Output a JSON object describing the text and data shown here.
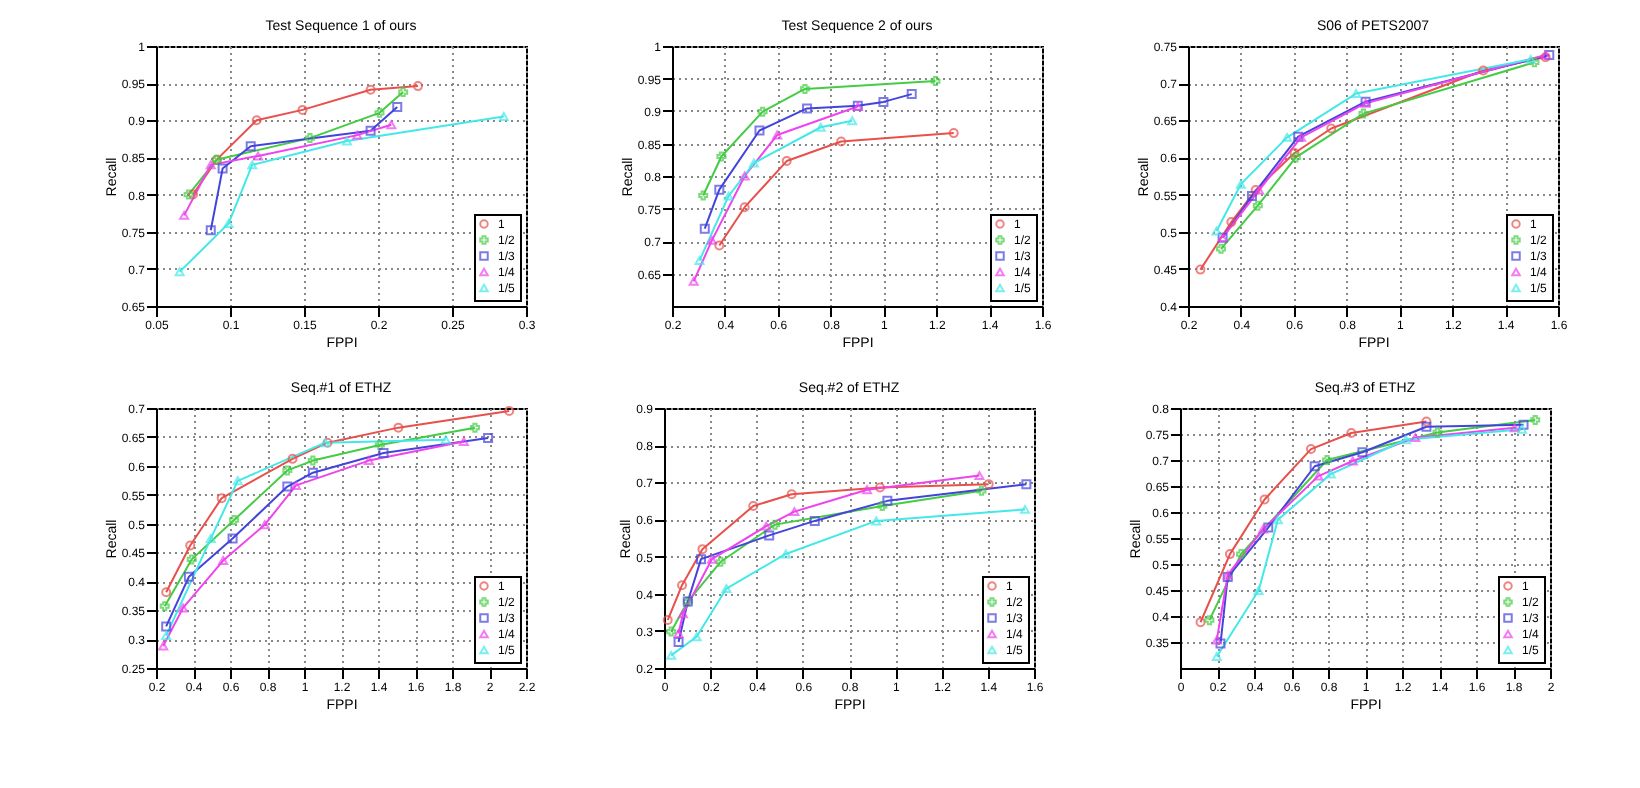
{
  "chart_data": [
    {
      "type": "line",
      "title": "Test Sequence 1 of ours",
      "xlabel": "FPPI",
      "ylabel": "Recall",
      "xlim": [
        0.05,
        0.3
      ],
      "xticks": [
        0.05,
        0.1,
        0.15,
        0.2,
        0.25,
        0.3
      ],
      "ylim": [
        0.65,
        1
      ],
      "yticks": [
        0.65,
        0.7,
        0.75,
        0.8,
        0.85,
        0.9,
        0.95,
        1
      ],
      "grid": true,
      "legend": "bottom right",
      "line_style": "solid",
      "series": [
        {
          "name": "1",
          "color": "#e8504c",
          "marker": "circle",
          "x": [
            0.075,
            0.091,
            0.118,
            0.149,
            0.195,
            0.227
          ],
          "values": [
            0.8,
            0.847,
            0.9,
            0.914,
            0.941,
            0.946
          ]
        },
        {
          "name": "1/2",
          "color": "#44cc44",
          "marker": "cross",
          "x": [
            0.072,
            0.091,
            0.154,
            0.201,
            0.217
          ],
          "values": [
            0.8,
            0.847,
            0.876,
            0.91,
            0.938
          ]
        },
        {
          "name": "1/3",
          "color": "#4444dd",
          "marker": "square",
          "x": [
            0.087,
            0.095,
            0.114,
            0.195,
            0.213
          ],
          "values": [
            0.752,
            0.835,
            0.865,
            0.886,
            0.918
          ]
        },
        {
          "name": "1/4",
          "color": "#ee44ee",
          "marker": "triangle",
          "x": [
            0.069,
            0.087,
            0.119,
            0.186,
            0.209
          ],
          "values": [
            0.772,
            0.84,
            0.852,
            0.88,
            0.894
          ]
        },
        {
          "name": "1/5",
          "color": "#44e8e8",
          "marker": "triangle",
          "x": [
            0.066,
            0.099,
            0.115,
            0.179,
            0.285
          ],
          "values": [
            0.696,
            0.761,
            0.84,
            0.872,
            0.905
          ]
        }
      ]
    },
    {
      "type": "line",
      "title": "Test Sequence 2 of ours",
      "xlabel": "FPPI",
      "ylabel": "Recall",
      "xlim": [
        0.2,
        1.6
      ],
      "xticks": [
        0.2,
        0.4,
        0.6,
        0.8,
        1,
        1.2,
        1.4,
        1.6
      ],
      "ylim": [
        0.6,
        1
      ],
      "yticks": [
        0.65,
        0.7,
        0.75,
        0.8,
        0.85,
        0.9,
        0.95,
        1
      ],
      "grid": true,
      "legend": "bottom right",
      "line_style": "solid",
      "series": [
        {
          "name": "1",
          "color": "#e8504c",
          "marker": "circle",
          "x": [
            0.379,
            0.475,
            0.634,
            0.84,
            1.266
          ],
          "values": [
            0.693,
            0.752,
            0.823,
            0.853,
            0.866
          ]
        },
        {
          "name": "1/2",
          "color": "#44cc44",
          "marker": "cross",
          "x": [
            0.318,
            0.387,
            0.543,
            0.703,
            1.197
          ],
          "values": [
            0.77,
            0.83,
            0.899,
            0.934,
            0.946
          ]
        },
        {
          "name": "1/3",
          "color": "#4444dd",
          "marker": "square",
          "x": [
            0.324,
            0.379,
            0.531,
            0.711,
            0.903,
            1.0,
            1.107
          ],
          "values": [
            0.719,
            0.779,
            0.87,
            0.904,
            0.908,
            0.914,
            0.926
          ]
        },
        {
          "name": "1/4",
          "color": "#ee44ee",
          "marker": "triangle",
          "x": [
            0.282,
            0.351,
            0.475,
            0.598,
            0.903
          ],
          "values": [
            0.638,
            0.701,
            0.8,
            0.863,
            0.907
          ]
        },
        {
          "name": "1/5",
          "color": "#44e8e8",
          "marker": "triangle",
          "x": [
            0.304,
            0.414,
            0.51,
            0.763,
            0.882
          ],
          "values": [
            0.67,
            0.769,
            0.82,
            0.875,
            0.885
          ]
        }
      ]
    },
    {
      "type": "line",
      "title": "S06 of PETS2007",
      "xlabel": "FPPI",
      "ylabel": "Recall",
      "xlim": [
        0.2,
        1.6
      ],
      "xticks": [
        0.2,
        0.4,
        0.6,
        0.8,
        1,
        1.2,
        1.4,
        1.6
      ],
      "ylim": [
        0.4,
        0.75
      ],
      "yticks": [
        0.4,
        0.45,
        0.5,
        0.55,
        0.6,
        0.65,
        0.7,
        0.75
      ],
      "grid": true,
      "legend": "bottom right",
      "line_style": "solid",
      "series": [
        {
          "name": "1",
          "color": "#e8504c",
          "marker": "circle",
          "x": [
            0.247,
            0.364,
            0.456,
            0.603,
            0.742,
            1.317,
            1.553
          ],
          "values": [
            0.449,
            0.513,
            0.556,
            0.606,
            0.639,
            0.717,
            0.735
          ]
        },
        {
          "name": "1/2",
          "color": "#44cc44",
          "marker": "cross",
          "x": [
            0.325,
            0.464,
            0.608,
            0.864,
            1.511
          ],
          "values": [
            0.477,
            0.535,
            0.6,
            0.659,
            0.728
          ]
        },
        {
          "name": "1/3",
          "color": "#4444dd",
          "marker": "square",
          "x": [
            0.331,
            0.442,
            0.617,
            0.872,
            1.567
          ],
          "values": [
            0.492,
            0.548,
            0.628,
            0.675,
            0.738
          ]
        },
        {
          "name": "1/4",
          "color": "#ee44ee",
          "marker": "triangle",
          "x": [
            0.331,
            0.469,
            0.628,
            0.872,
            1.553
          ],
          "values": [
            0.492,
            0.556,
            0.627,
            0.673,
            0.738
          ]
        },
        {
          "name": "1/5",
          "color": "#44e8e8",
          "marker": "triangle",
          "x": [
            0.308,
            0.4,
            0.575,
            0.836,
            1.497
          ],
          "values": [
            0.501,
            0.564,
            0.627,
            0.686,
            0.732
          ]
        }
      ]
    },
    {
      "type": "line",
      "title": "Seq.#1 of ETHZ",
      "xlabel": "FPPI",
      "ylabel": "Recall",
      "xlim": [
        0.2,
        2.2
      ],
      "xticks": [
        0.2,
        0.4,
        0.6,
        0.8,
        1,
        1.2,
        1.4,
        1.6,
        1.8,
        2,
        2.2
      ],
      "ylim": [
        0.25,
        0.7
      ],
      "yticks": [
        0.25,
        0.3,
        0.35,
        0.4,
        0.45,
        0.5,
        0.55,
        0.6,
        0.65,
        0.7
      ],
      "grid": true,
      "legend": "bottom right",
      "line_style": "solid",
      "series": [
        {
          "name": "1",
          "color": "#e8504c",
          "marker": "circle",
          "x": [
            0.255,
            0.385,
            0.555,
            0.938,
            1.127,
            1.51,
            2.109
          ],
          "values": [
            0.381,
            0.462,
            0.544,
            0.612,
            0.64,
            0.666,
            0.695
          ]
        },
        {
          "name": "1/2",
          "color": "#44cc44",
          "marker": "cross",
          "x": [
            0.247,
            0.393,
            0.622,
            0.91,
            1.048,
            1.41,
            1.924
          ],
          "values": [
            0.357,
            0.438,
            0.506,
            0.592,
            0.609,
            0.636,
            0.666
          ]
        },
        {
          "name": "1/3",
          "color": "#4444dd",
          "marker": "square",
          "x": [
            0.255,
            0.378,
            0.614,
            0.91,
            1.048,
            1.43,
            1.995
          ],
          "values": [
            0.322,
            0.408,
            0.474,
            0.564,
            0.588,
            0.622,
            0.648
          ]
        },
        {
          "name": "1/4",
          "color": "#ee44ee",
          "marker": "triangle",
          "x": [
            0.239,
            0.346,
            0.563,
            0.788,
            0.957,
            1.351,
            1.864
          ],
          "values": [
            0.288,
            0.354,
            0.436,
            0.498,
            0.566,
            0.609,
            0.642
          ]
        },
        {
          "name": "1/5",
          "color": "#44e8e8",
          "marker": "triangle",
          "x": [
            0.255,
            0.496,
            0.642,
            1.115,
            1.766
          ],
          "values": [
            0.306,
            0.474,
            0.574,
            0.64,
            0.645
          ]
        }
      ]
    },
    {
      "type": "line",
      "title": "Seq.#2 of ETHZ",
      "xlabel": "FPPI",
      "ylabel": "Recall",
      "xlim": [
        0,
        1.6
      ],
      "xticks": [
        0,
        0.2,
        0.4,
        0.6,
        0.8,
        1,
        1.2,
        1.4,
        1.6
      ],
      "ylim": [
        0.2,
        0.9
      ],
      "yticks": [
        0.2,
        0.3,
        0.4,
        0.5,
        0.6,
        0.7,
        0.8,
        0.9
      ],
      "grid": true,
      "legend": "bottom right",
      "line_style": "solid",
      "series": [
        {
          "name": "1",
          "color": "#e8504c",
          "marker": "circle",
          "x": [
            0.016,
            0.078,
            0.166,
            0.386,
            0.552,
            0.934,
            1.404
          ],
          "values": [
            0.329,
            0.423,
            0.52,
            0.636,
            0.668,
            0.686,
            0.695
          ]
        },
        {
          "name": "1/2",
          "color": "#44cc44",
          "marker": "cross",
          "x": [
            0.031,
            0.103,
            0.245,
            0.48,
            0.944,
            1.373
          ],
          "values": [
            0.298,
            0.379,
            0.486,
            0.586,
            0.636,
            0.677
          ]
        },
        {
          "name": "1/3",
          "color": "#4444dd",
          "marker": "square",
          "x": [
            0.063,
            0.103,
            0.16,
            0.455,
            0.652,
            0.966,
            1.567
          ],
          "values": [
            0.27,
            0.379,
            0.493,
            0.557,
            0.596,
            0.65,
            0.695
          ]
        },
        {
          "name": "1/4",
          "color": "#ee44ee",
          "marker": "triangle",
          "x": [
            0.063,
            0.082,
            0.207,
            0.442,
            0.564,
            0.878,
            1.364
          ],
          "values": [
            0.293,
            0.346,
            0.493,
            0.582,
            0.621,
            0.68,
            0.718
          ]
        },
        {
          "name": "1/5",
          "color": "#44e8e8",
          "marker": "triangle",
          "x": [
            0.031,
            0.141,
            0.27,
            0.527,
            0.918,
            1.561
          ],
          "values": [
            0.234,
            0.284,
            0.414,
            0.507,
            0.596,
            0.627
          ]
        }
      ]
    },
    {
      "type": "line",
      "title": "Seq.#3 of ETHZ",
      "xlabel": "FPPI",
      "ylabel": "Recall",
      "xlim": [
        0,
        2
      ],
      "xticks": [
        0,
        0.2,
        0.4,
        0.6,
        0.8,
        1,
        1.2,
        1.4,
        1.6,
        1.8,
        2
      ],
      "ylim": [
        0.3,
        0.8
      ],
      "yticks": [
        0.35,
        0.4,
        0.45,
        0.5,
        0.55,
        0.6,
        0.65,
        0.7,
        0.75,
        0.8
      ],
      "grid": true,
      "legend": "bottom right",
      "line_style": "solid",
      "series": [
        {
          "name": "1",
          "color": "#e8504c",
          "marker": "circle",
          "x": [
            0.111,
            0.27,
            0.457,
            0.708,
            0.926,
            1.332
          ],
          "values": [
            0.388,
            0.519,
            0.624,
            0.721,
            0.752,
            0.774
          ]
        },
        {
          "name": "1/2",
          "color": "#44cc44",
          "marker": "cross",
          "x": [
            0.159,
            0.33,
            0.795,
            1.392,
            1.92
          ],
          "values": [
            0.392,
            0.519,
            0.7,
            0.753,
            0.777
          ]
        },
        {
          "name": "1/3",
          "color": "#4444dd",
          "marker": "square",
          "x": [
            0.219,
            0.258,
            0.477,
            0.728,
            0.986,
            1.332,
            1.857
          ],
          "values": [
            0.347,
            0.475,
            0.57,
            0.688,
            0.715,
            0.764,
            0.768
          ]
        },
        {
          "name": "1/4",
          "color": "#ee44ee",
          "marker": "triangle",
          "x": [
            0.199,
            0.258,
            0.449,
            0.748,
            0.934,
            1.272,
            1.809
          ],
          "values": [
            0.354,
            0.479,
            0.567,
            0.669,
            0.698,
            0.743,
            0.762
          ]
        },
        {
          "name": "1/5",
          "color": "#44e8e8",
          "marker": "triangle",
          "x": [
            0.199,
            0.425,
            0.529,
            0.815,
            1.221,
            1.849
          ],
          "values": [
            0.322,
            0.449,
            0.585,
            0.673,
            0.739,
            0.759
          ]
        }
      ]
    }
  ]
}
